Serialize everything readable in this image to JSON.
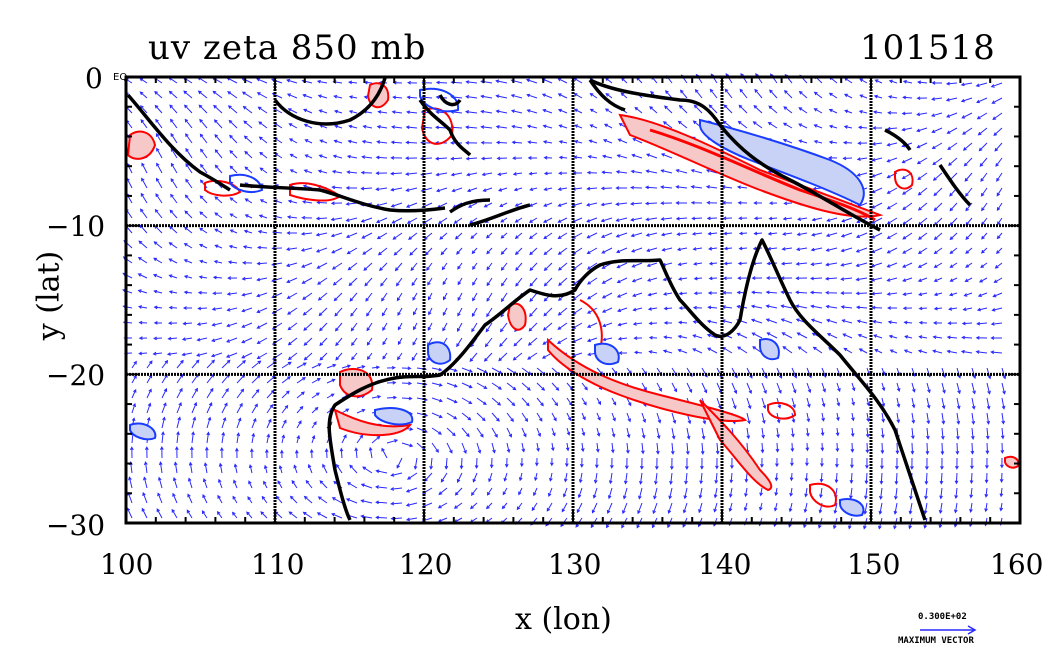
{
  "title_left": "uv zeta 850 mb",
  "title_right": "101518",
  "y_axis_label": "y (lat)",
  "x_axis_label": "x (lon)",
  "equator_tag": "EQ",
  "x_ticks": [
    "100",
    "110",
    "120",
    "130",
    "140",
    "150",
    "160"
  ],
  "y_ticks": [
    "0",
    "−10",
    "−20",
    "−30"
  ],
  "x_range": [
    100,
    160
  ],
  "y_range": [
    -30,
    0
  ],
  "grid_lines": {
    "lon": [
      110,
      120,
      130,
      140,
      150
    ],
    "lat": [
      -10,
      -20
    ]
  },
  "vector_scale": {
    "value": "0.300E+02",
    "label": "MAXIMUM VECTOR"
  },
  "colors": {
    "frame": "#000000",
    "vectors": "#2a2aff",
    "positive_zeta": "#ff0000",
    "positive_fill": "#f6c8c8",
    "negative_zeta": "#1a3cff",
    "negative_fill": "#c8d2f6"
  }
}
